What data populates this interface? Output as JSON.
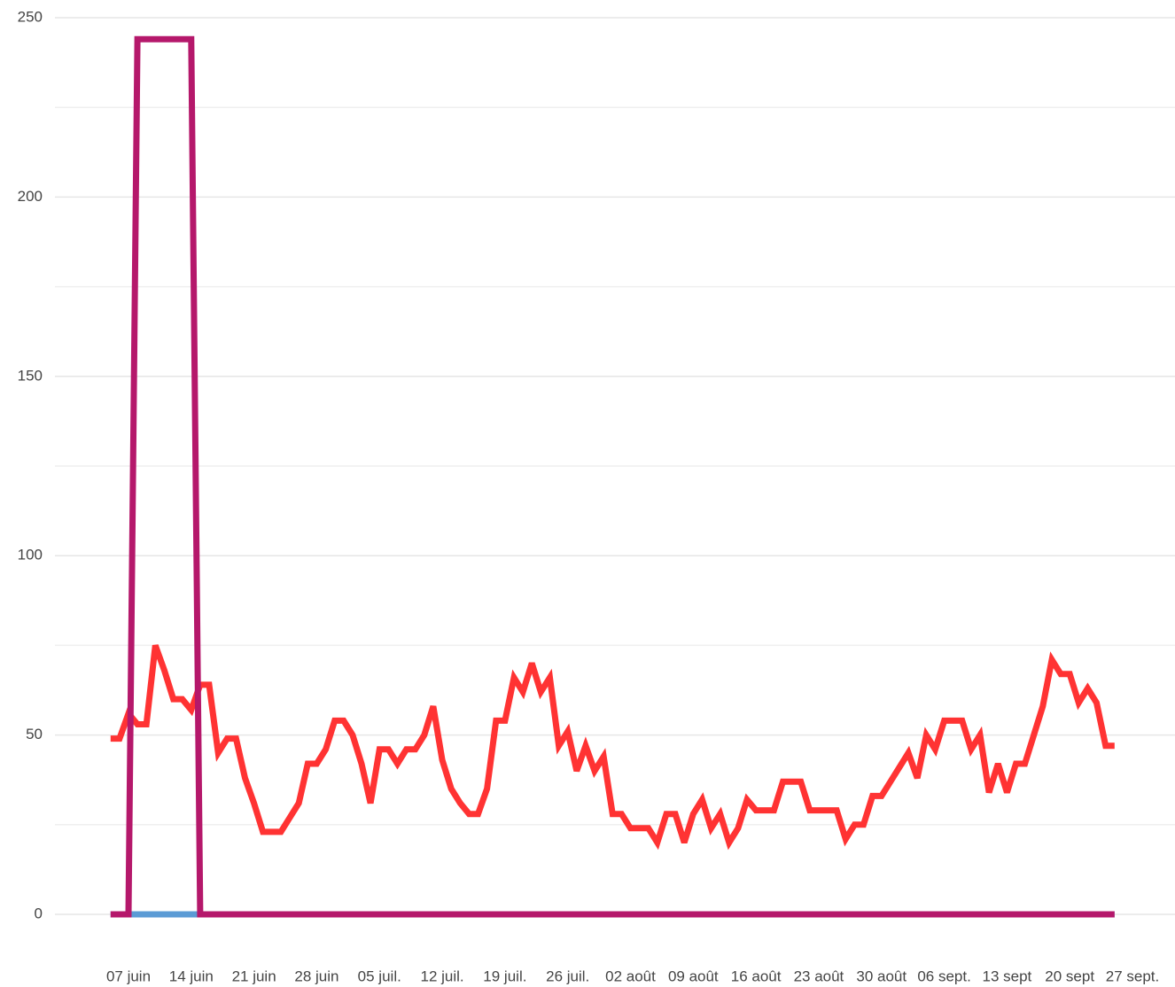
{
  "chart_data": {
    "type": "line",
    "categories": [
      null,
      null,
      "07 juin",
      null,
      null,
      null,
      null,
      null,
      null,
      "14 juin",
      null,
      null,
      null,
      null,
      null,
      null,
      "21 juin",
      null,
      null,
      null,
      null,
      null,
      null,
      "28 juin",
      null,
      null,
      null,
      null,
      null,
      null,
      "05 juil.",
      null,
      null,
      null,
      null,
      null,
      null,
      "12 juil.",
      null,
      null,
      null,
      null,
      null,
      null,
      "19 juil.",
      null,
      null,
      null,
      null,
      null,
      null,
      "26 juil.",
      null,
      null,
      null,
      null,
      null,
      null,
      "02 août",
      null,
      null,
      null,
      null,
      null,
      null,
      "09 août",
      null,
      null,
      null,
      null,
      null,
      null,
      "16 août",
      null,
      null,
      null,
      null,
      null,
      null,
      "23 août",
      null,
      null,
      null,
      null,
      null,
      null,
      "30 août",
      null,
      null,
      null,
      null,
      null,
      null,
      "06 sept.",
      null,
      null,
      null,
      null,
      null,
      null,
      "13 sept",
      null,
      null,
      null,
      null,
      null,
      null,
      "20 sept",
      null,
      null,
      null,
      null,
      null,
      null,
      "27 sept."
    ],
    "series": [
      {
        "color": "#ff3333",
        "values": [
          49,
          49,
          56,
          53,
          53,
          75,
          68,
          60,
          60,
          57,
          64,
          64,
          45,
          49,
          49,
          38,
          31,
          23,
          23,
          23,
          27,
          31,
          42,
          42,
          46,
          54,
          54,
          50,
          42,
          31,
          46,
          46,
          42,
          46,
          46,
          50,
          58,
          43,
          35,
          31,
          28,
          28,
          35,
          54,
          54,
          66,
          62,
          70,
          62,
          66,
          47,
          51,
          40,
          47,
          40,
          44,
          28,
          28,
          24,
          24,
          24,
          20,
          28,
          28,
          20,
          28,
          32,
          24,
          28,
          20,
          24,
          32,
          29,
          29,
          29,
          37,
          37,
          37,
          29,
          29,
          29,
          29,
          21,
          25,
          25,
          33,
          33,
          37,
          41,
          45,
          38,
          50,
          46,
          54,
          54,
          54,
          46,
          50,
          34,
          42,
          34,
          42,
          42,
          50,
          58,
          71,
          67,
          67,
          59,
          63,
          59,
          47,
          47,
          null,
          null
        ]
      },
      {
        "color": "#5b9bd5",
        "values": [
          0,
          0,
          0,
          0,
          0,
          0,
          0,
          0,
          0,
          0,
          0,
          0,
          0,
          0,
          0,
          0,
          0,
          0,
          0,
          0,
          0,
          0,
          0,
          0,
          0,
          0,
          0,
          0,
          0,
          0,
          0,
          0,
          0,
          0,
          0,
          0,
          0,
          0,
          0,
          0,
          0,
          0,
          0,
          0,
          0,
          0,
          0,
          0,
          0,
          0,
          0,
          0,
          0,
          0,
          0,
          0,
          0,
          0,
          0,
          0,
          0,
          0,
          0,
          0,
          0,
          0,
          0,
          0,
          0,
          0,
          0,
          0,
          0,
          0,
          0,
          0,
          0,
          0,
          0,
          0,
          0,
          0,
          0,
          0,
          0,
          0,
          0,
          0,
          0,
          0,
          0,
          0,
          0,
          0,
          0,
          0,
          0,
          0,
          0,
          0,
          0,
          0,
          0,
          0,
          0,
          0,
          0,
          0,
          0,
          0,
          0,
          0,
          0,
          null,
          null
        ]
      },
      {
        "color": "#b5186b",
        "values": [
          0,
          0,
          0,
          244,
          244,
          244,
          244,
          244,
          244,
          244,
          0,
          0,
          0,
          0,
          0,
          0,
          0,
          0,
          0,
          0,
          0,
          0,
          0,
          0,
          0,
          0,
          0,
          0,
          0,
          0,
          0,
          0,
          0,
          0,
          0,
          0,
          0,
          0,
          0,
          0,
          0,
          0,
          0,
          0,
          0,
          0,
          0,
          0,
          0,
          0,
          0,
          0,
          0,
          0,
          0,
          0,
          0,
          0,
          0,
          0,
          0,
          0,
          0,
          0,
          0,
          0,
          0,
          0,
          0,
          0,
          0,
          0,
          0,
          0,
          0,
          0,
          0,
          0,
          0,
          0,
          0,
          0,
          0,
          0,
          0,
          0,
          0,
          0,
          0,
          0,
          0,
          0,
          0,
          0,
          0,
          0,
          0,
          0,
          0,
          0,
          0,
          0,
          0,
          0,
          0,
          0,
          0,
          0,
          0,
          0,
          0,
          0,
          0,
          null,
          null
        ]
      }
    ],
    "ylim": [
      0,
      250
    ],
    "yticks": [
      0,
      50,
      100,
      150,
      200,
      250
    ],
    "minor_yticks": [
      25,
      75,
      125,
      175,
      225
    ],
    "grid": true
  }
}
